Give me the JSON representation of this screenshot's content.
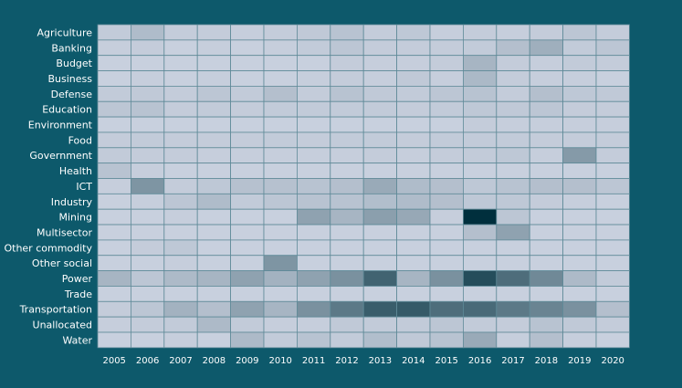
{
  "chart_data": {
    "type": "heatmap",
    "title": "",
    "xlabel": "",
    "ylabel": "",
    "rows": [
      "Agriculture",
      "Banking",
      "Budget",
      "Business",
      "Defense",
      "Education",
      "Environment",
      "Food",
      "Government",
      "Health",
      "ICT",
      "Industry",
      "Mining",
      "Multisector",
      "Other commodity",
      "Other social",
      "Power",
      "Trade",
      "Transportation",
      "Unallocated",
      "Water"
    ],
    "columns": [
      "2005",
      "2006",
      "2007",
      "2008",
      "2009",
      "2010",
      "2011",
      "2012",
      "2013",
      "2014",
      "2015",
      "2016",
      "2017",
      "2018",
      "2019",
      "2020"
    ],
    "values": [
      [
        0.05,
        0.14,
        0.04,
        0.04,
        0.03,
        0.04,
        0.06,
        0.1,
        0.04,
        0.07,
        0.03,
        0.04,
        0.03,
        0.04,
        0.08,
        0.04
      ],
      [
        0.03,
        0.04,
        0.02,
        0.03,
        0.02,
        0.03,
        0.05,
        0.08,
        0.04,
        0.04,
        0.04,
        0.05,
        0.12,
        0.22,
        0.05,
        0.08
      ],
      [
        0.02,
        0.02,
        0.02,
        0.02,
        0.02,
        0.02,
        0.02,
        0.04,
        0.03,
        0.03,
        0.04,
        0.18,
        0.04,
        0.03,
        0.05,
        0.04
      ],
      [
        0.02,
        0.03,
        0.02,
        0.03,
        0.02,
        0.02,
        0.03,
        0.04,
        0.03,
        0.06,
        0.03,
        0.16,
        0.04,
        0.03,
        0.03,
        0.02
      ],
      [
        0.05,
        0.06,
        0.04,
        0.08,
        0.05,
        0.12,
        0.04,
        0.1,
        0.06,
        0.05,
        0.08,
        0.1,
        0.04,
        0.12,
        0.07,
        0.06
      ],
      [
        0.08,
        0.1,
        0.04,
        0.05,
        0.04,
        0.05,
        0.05,
        0.05,
        0.05,
        0.04,
        0.05,
        0.07,
        0.06,
        0.08,
        0.04,
        0.04
      ],
      [
        0.02,
        0.02,
        0.02,
        0.02,
        0.02,
        0.02,
        0.02,
        0.02,
        0.02,
        0.02,
        0.02,
        0.04,
        0.03,
        0.03,
        0.03,
        0.03
      ],
      [
        0.04,
        0.05,
        0.04,
        0.04,
        0.04,
        0.05,
        0.04,
        0.05,
        0.05,
        0.04,
        0.05,
        0.05,
        0.05,
        0.04,
        0.04,
        0.04
      ],
      [
        0.05,
        0.04,
        0.04,
        0.03,
        0.03,
        0.03,
        0.03,
        0.03,
        0.04,
        0.03,
        0.04,
        0.05,
        0.07,
        0.03,
        0.35,
        0.04
      ],
      [
        0.1,
        0.03,
        0.02,
        0.02,
        0.02,
        0.02,
        0.02,
        0.02,
        0.02,
        0.02,
        0.02,
        0.02,
        0.02,
        0.02,
        0.02,
        0.02
      ],
      [
        0.03,
        0.38,
        0.04,
        0.07,
        0.11,
        0.11,
        0.1,
        0.12,
        0.25,
        0.14,
        0.12,
        0.07,
        0.1,
        0.12,
        0.12,
        0.08
      ],
      [
        0.02,
        0.03,
        0.08,
        0.14,
        0.05,
        0.08,
        0.1,
        0.1,
        0.13,
        0.14,
        0.12,
        0.07,
        0.07,
        0.04,
        0.03,
        0.02
      ],
      [
        0.02,
        0.02,
        0.03,
        0.02,
        0.02,
        0.02,
        0.3,
        0.18,
        0.32,
        0.26,
        0.03,
        1.0,
        0.08,
        0.02,
        0.02,
        0.02
      ],
      [
        0.02,
        0.02,
        0.02,
        0.02,
        0.02,
        0.02,
        0.02,
        0.02,
        0.02,
        0.02,
        0.02,
        0.12,
        0.3,
        0.02,
        0.02,
        0.02
      ],
      [
        0.02,
        0.04,
        0.07,
        0.02,
        0.02,
        0.02,
        0.02,
        0.02,
        0.02,
        0.02,
        0.02,
        0.02,
        0.02,
        0.02,
        0.02,
        0.02
      ],
      [
        0.02,
        0.02,
        0.03,
        0.02,
        0.02,
        0.38,
        0.02,
        0.02,
        0.02,
        0.02,
        0.02,
        0.02,
        0.02,
        0.02,
        0.02,
        0.02
      ],
      [
        0.18,
        0.08,
        0.15,
        0.18,
        0.3,
        0.2,
        0.3,
        0.4,
        0.68,
        0.18,
        0.4,
        0.82,
        0.62,
        0.45,
        0.15,
        0.05
      ],
      [
        0.02,
        0.02,
        0.02,
        0.02,
        0.02,
        0.02,
        0.02,
        0.02,
        0.02,
        0.02,
        0.02,
        0.02,
        0.02,
        0.02,
        0.02,
        0.02
      ],
      [
        0.04,
        0.08,
        0.2,
        0.12,
        0.3,
        0.18,
        0.4,
        0.55,
        0.72,
        0.74,
        0.62,
        0.64,
        0.55,
        0.48,
        0.4,
        0.12
      ],
      [
        0.03,
        0.04,
        0.05,
        0.15,
        0.05,
        0.03,
        0.03,
        0.06,
        0.05,
        0.05,
        0.08,
        0.05,
        0.04,
        0.1,
        0.06,
        0.04
      ],
      [
        0.02,
        0.02,
        0.03,
        0.02,
        0.15,
        0.05,
        0.1,
        0.05,
        0.13,
        0.06,
        0.1,
        0.25,
        0.03,
        0.12,
        0.03,
        0.02
      ]
    ]
  }
}
